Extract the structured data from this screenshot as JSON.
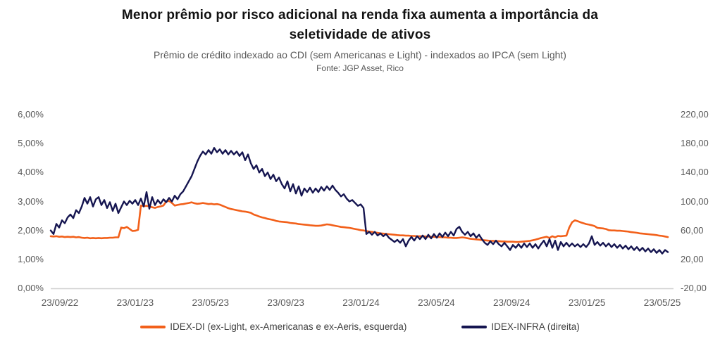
{
  "header": {
    "title_line1": "Menor prêmio por risco adicional na renda fixa aumenta a importância da",
    "title_line2": "seletividade de ativos",
    "subtitle": "Prêmio de crédito indexado ao CDI (sem Americanas e Light) - indexados ao IPCA (sem Light)",
    "source": "Fonte: JGP Asset, Rico"
  },
  "chart_data": {
    "type": "line",
    "title": "Menor prêmio por risco adicional na renda fixa aumenta a importância da seletividade de ativos",
    "subtitle": "Prêmio de crédito indexado ao CDI (sem Americanas e Light) - indexados ao IPCA (sem Light)",
    "source": "Fonte: JGP Asset, Rico",
    "grid": "off",
    "legend_position": "bottom",
    "baseline_color": "#d0d0d0",
    "tick_color": "#595959",
    "x_axis": {
      "tick_labels": [
        "23/09/22",
        "23/01/23",
        "23/05/23",
        "23/09/23",
        "23/01/24",
        "23/05/24",
        "23/09/24",
        "23/01/25",
        "23/05/25"
      ]
    },
    "left_axis": {
      "unit": "%",
      "range": [
        0,
        6
      ],
      "tick_labels": [
        "6,00%",
        "5,00%",
        "4,00%",
        "3,00%",
        "2,00%",
        "1,00%",
        "0,00%"
      ]
    },
    "right_axis": {
      "range": [
        -20,
        220
      ],
      "tick_labels": [
        "220,00",
        "180,00",
        "140,00",
        "100,00",
        "60,00",
        "20,00",
        "-20,00"
      ]
    },
    "series": [
      {
        "name": "IDEX-DI (ex-Light, ex-Americanas e ex-Aeris, esquerda)",
        "axis": "left",
        "color": "#F2601A",
        "stroke_width": 2.6,
        "values": [
          1.8,
          1.79,
          1.8,
          1.78,
          1.79,
          1.77,
          1.78,
          1.77,
          1.78,
          1.76,
          1.77,
          1.75,
          1.74,
          1.75,
          1.73,
          1.74,
          1.73,
          1.74,
          1.73,
          1.74,
          1.74,
          1.75,
          1.75,
          1.76,
          1.76,
          2.1,
          2.08,
          2.12,
          2.05,
          1.98,
          1.99,
          2.02,
          2.86,
          2.84,
          2.85,
          2.83,
          2.8,
          2.78,
          2.81,
          2.83,
          2.86,
          3.0,
          3.02,
          2.95,
          2.86,
          2.88,
          2.9,
          2.91,
          2.93,
          2.95,
          2.97,
          2.94,
          2.92,
          2.93,
          2.95,
          2.93,
          2.91,
          2.92,
          2.9,
          2.91,
          2.89,
          2.85,
          2.81,
          2.77,
          2.74,
          2.72,
          2.7,
          2.68,
          2.66,
          2.65,
          2.63,
          2.61,
          2.55,
          2.52,
          2.48,
          2.45,
          2.43,
          2.4,
          2.38,
          2.36,
          2.33,
          2.31,
          2.3,
          2.29,
          2.28,
          2.26,
          2.25,
          2.24,
          2.22,
          2.21,
          2.2,
          2.19,
          2.18,
          2.17,
          2.16,
          2.16,
          2.17,
          2.19,
          2.21,
          2.2,
          2.18,
          2.16,
          2.14,
          2.12,
          2.11,
          2.1,
          2.09,
          2.07,
          2.05,
          2.03,
          2.01,
          2.0,
          1.98,
          1.96,
          1.95,
          1.93,
          1.92,
          1.9,
          1.89,
          1.88,
          1.87,
          1.86,
          1.85,
          1.84,
          1.83,
          1.83,
          1.82,
          1.82,
          1.81,
          1.81,
          1.8,
          1.8,
          1.8,
          1.79,
          1.79,
          1.78,
          1.78,
          1.77,
          1.77,
          1.76,
          1.76,
          1.75,
          1.75,
          1.74,
          1.74,
          1.75,
          1.76,
          1.75,
          1.73,
          1.71,
          1.7,
          1.69,
          1.68,
          1.67,
          1.66,
          1.65,
          1.64,
          1.64,
          1.63,
          1.63,
          1.62,
          1.62,
          1.61,
          1.61,
          1.61,
          1.6,
          1.6,
          1.61,
          1.62,
          1.63,
          1.64,
          1.66,
          1.68,
          1.71,
          1.74,
          1.76,
          1.78,
          1.74,
          1.8,
          1.76,
          1.81,
          1.8,
          1.81,
          1.82,
          2.1,
          2.28,
          2.35,
          2.32,
          2.28,
          2.25,
          2.22,
          2.2,
          2.18,
          2.15,
          2.09,
          2.08,
          2.07,
          2.05,
          2.01,
          2.0,
          2.0,
          1.99,
          1.99,
          1.98,
          1.97,
          1.96,
          1.94,
          1.93,
          1.92,
          1.9,
          1.89,
          1.88,
          1.87,
          1.86,
          1.85,
          1.84,
          1.82,
          1.81,
          1.79,
          1.77
        ]
      },
      {
        "name": "IDEX-INFRA (direita)",
        "axis": "right",
        "color": "#151550",
        "stroke_width": 2.4,
        "values": [
          60,
          55,
          69,
          64,
          74,
          70,
          78,
          82,
          77,
          88,
          84,
          93,
          105,
          97,
          106,
          93,
          103,
          106,
          95,
          102,
          91,
          99,
          87,
          97,
          84,
          92,
          100,
          95,
          101,
          97,
          102,
          95,
          104,
          93,
          113,
          90,
          106,
          95,
          102,
          97,
          103,
          99,
          105,
          100,
          108,
          103,
          110,
          114,
          121,
          128,
          135,
          145,
          155,
          163,
          169,
          165,
          171,
          166,
          174,
          168,
          172,
          166,
          171,
          165,
          170,
          165,
          169,
          163,
          168,
          157,
          165,
          153,
          145,
          150,
          140,
          145,
          135,
          140,
          131,
          137,
          128,
          133,
          124,
          118,
          128,
          114,
          124,
          111,
          121,
          108,
          118,
          113,
          119,
          112,
          118,
          113,
          120,
          115,
          121,
          116,
          122,
          116,
          112,
          107,
          110,
          104,
          100,
          102,
          98,
          94,
          96,
          91,
          55,
          58,
          54,
          58,
          53,
          56,
          52,
          55,
          50,
          47,
          44,
          47,
          43,
          48,
          38,
          46,
          51,
          46,
          52,
          48,
          53,
          48,
          54,
          49,
          55,
          50,
          56,
          51,
          57,
          52,
          58,
          53,
          62,
          65,
          58,
          54,
          58,
          52,
          56,
          50,
          54,
          48,
          43,
          40,
          45,
          41,
          46,
          41,
          38,
          43,
          38,
          33,
          40,
          36,
          41,
          36,
          42,
          37,
          42,
          36,
          41,
          35,
          41,
          46,
          38,
          48,
          36,
          46,
          33,
          44,
          38,
          43,
          38,
          42,
          38,
          41,
          37,
          41,
          37,
          42,
          52,
          40,
          44,
          39,
          43,
          38,
          42,
          37,
          41,
          36,
          40,
          35,
          39,
          34,
          38,
          33,
          37,
          32,
          36,
          31,
          35,
          30,
          34,
          29,
          33,
          28,
          33,
          30
        ]
      }
    ]
  },
  "legend": {
    "entries": [
      {
        "label": "IDEX-DI (ex-Light, ex-Americanas e ex-Aeris, esquerda)",
        "color": "#F2601A"
      },
      {
        "label": "IDEX-INFRA (direita)",
        "color": "#151550"
      }
    ]
  }
}
